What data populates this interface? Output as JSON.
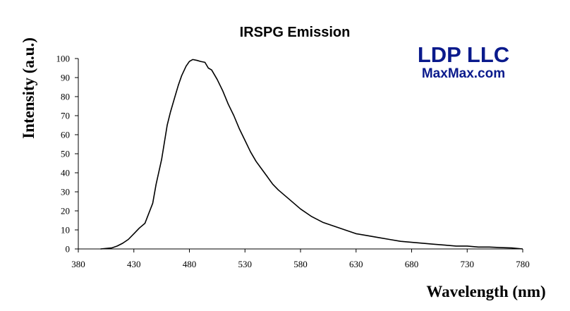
{
  "chart_data": {
    "type": "line",
    "title": "IRSPG Emission",
    "xlabel": "Wavelength (nm)",
    "ylabel": "Intensity (a.u.)",
    "xlim": [
      380,
      780
    ],
    "ylim": [
      0,
      100
    ],
    "xticks": [
      "380",
      "430",
      "480",
      "530",
      "580",
      "630",
      "680",
      "730",
      "780"
    ],
    "yticks": [
      "0",
      "10",
      "20",
      "30",
      "40",
      "50",
      "60",
      "70",
      "80",
      "90",
      "100"
    ],
    "grid": false,
    "legend": "none",
    "line_color": "#000000",
    "series": [
      {
        "x": [
          400,
          410,
          415,
          420,
          425,
          430,
          435,
          440,
          443,
          447,
          450,
          455,
          460,
          463,
          467,
          470,
          473,
          477,
          480,
          483,
          487,
          490,
          494,
          497,
          500,
          505,
          510,
          515,
          520,
          525,
          530,
          535,
          540,
          545,
          550,
          555,
          560,
          570,
          580,
          590,
          600,
          610,
          620,
          630,
          640,
          650,
          660,
          670,
          680,
          690,
          700,
          710,
          720,
          730,
          740,
          750,
          760,
          770,
          780
        ],
        "y": [
          0,
          0.5,
          1.5,
          3,
          5,
          8,
          11,
          13.5,
          18,
          24,
          34,
          47,
          65,
          72,
          80,
          86,
          91,
          96,
          98.5,
          99.5,
          99,
          98.5,
          98,
          95,
          94,
          89,
          83,
          76,
          70,
          63,
          57,
          51,
          46,
          42,
          38,
          34,
          31,
          26,
          21,
          17,
          14,
          12,
          10,
          8,
          7,
          6,
          5,
          4,
          3.5,
          3,
          2.5,
          2,
          1.5,
          1.5,
          1,
          1,
          0.7,
          0.5,
          0
        ]
      }
    ]
  },
  "branding": {
    "company": "LDP LLC",
    "site": "MaxMax.com",
    "color": "#0a1a8c"
  }
}
